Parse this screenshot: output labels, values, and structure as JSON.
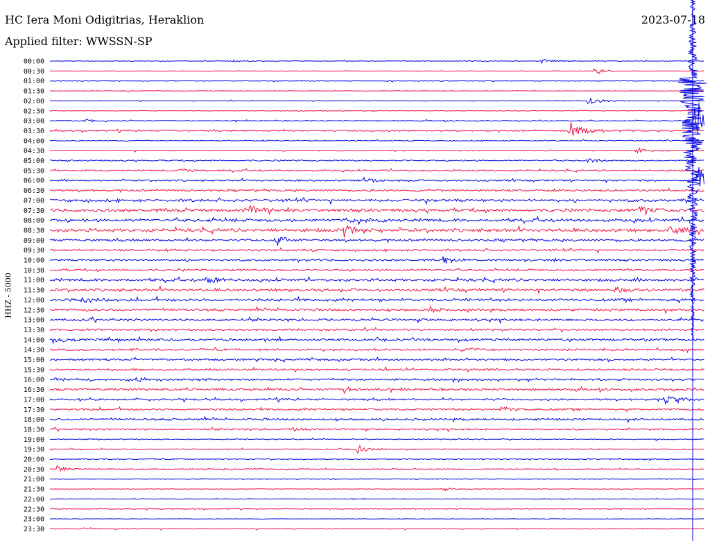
{
  "header": {
    "title": "HC Iera Moni Odigitrias, Heraklion",
    "filter": "Applied filter: WWSSN-SP",
    "date": "2023-07-18"
  },
  "chart_data": {
    "type": "line",
    "title": "HC Iera Moni Odigitrias, Heraklion",
    "subtitle": "Applied filter: WWSSN-SP",
    "ylabel": "HHZ - 5000",
    "colors": [
      "#0000dd",
      "#ee1144"
    ],
    "rows": [
      "00:00",
      "00:30",
      "01:00",
      "01:30",
      "02:00",
      "02:30",
      "03:00",
      "03:30",
      "04:00",
      "04:30",
      "05:00",
      "05:30",
      "06:00",
      "06:30",
      "07:00",
      "07:30",
      "08:00",
      "08:30",
      "09:00",
      "09:30",
      "10:00",
      "10:30",
      "11:00",
      "11:30",
      "12:00",
      "12:30",
      "13:00",
      "13:30",
      "14:00",
      "14:30",
      "15:00",
      "15:30",
      "16:00",
      "16:30",
      "17:00",
      "17:30",
      "18:00",
      "18:30",
      "19:00",
      "19:30",
      "20:00",
      "20:30",
      "21:00",
      "21:30",
      "22:00",
      "22:30",
      "23:00",
      "23:30"
    ],
    "noise": [
      0.4,
      0.3,
      0.4,
      0.3,
      0.4,
      0.4,
      0.6,
      0.9,
      0.6,
      0.6,
      0.8,
      1.0,
      1.0,
      1.2,
      1.6,
      1.8,
      1.8,
      2.0,
      1.4,
      1.2,
      1.2,
      1.2,
      1.6,
      1.6,
      1.6,
      1.4,
      1.4,
      1.2,
      1.4,
      1.2,
      1.2,
      1.2,
      1.2,
      1.4,
      1.2,
      1.2,
      1.2,
      1.0,
      0.6,
      0.6,
      0.6,
      0.6,
      0.4,
      0.4,
      0.4,
      0.5,
      0.3,
      0.5
    ],
    "events": [
      {
        "row": "00:00",
        "x": 0.28,
        "amp": 2
      },
      {
        "row": "00:00",
        "x": 0.752,
        "amp": 6
      },
      {
        "row": "00:30",
        "x": 0.832,
        "amp": 5
      },
      {
        "row": "02:00",
        "x": 0.823,
        "amp": 8
      },
      {
        "row": "03:00",
        "x": 0.055,
        "amp": 3
      },
      {
        "row": "03:30",
        "x": 0.795,
        "amp": 28
      },
      {
        "row": "04:30",
        "x": 0.897,
        "amp": 4
      },
      {
        "row": "05:00",
        "x": 0.82,
        "amp": 4
      },
      {
        "row": "05:30",
        "x": 0.2,
        "amp": 4
      },
      {
        "row": "06:00",
        "x": 0.48,
        "amp": 4
      },
      {
        "row": "07:30",
        "x": 0.3,
        "amp": 9
      },
      {
        "row": "07:30",
        "x": 0.9,
        "amp": 6
      },
      {
        "row": "08:00",
        "x": 0.46,
        "amp": 5
      },
      {
        "row": "08:30",
        "x": 0.45,
        "amp": 7
      },
      {
        "row": "08:30",
        "x": 0.948,
        "amp": 10
      },
      {
        "row": "09:00",
        "x": 0.345,
        "amp": 9
      },
      {
        "row": "10:00",
        "x": 0.6,
        "amp": 6
      },
      {
        "row": "11:00",
        "x": 0.24,
        "amp": 7
      },
      {
        "row": "11:30",
        "x": 0.86,
        "amp": 6
      },
      {
        "row": "12:00",
        "x": 0.05,
        "amp": 4
      },
      {
        "row": "12:30",
        "x": 0.58,
        "amp": 5
      },
      {
        "row": "14:00",
        "x": 0.01,
        "amp": 4
      },
      {
        "row": "14:30",
        "x": 0.63,
        "amp": 5
      },
      {
        "row": "16:00",
        "x": 0.12,
        "amp": 4
      },
      {
        "row": "16:30",
        "x": 0.45,
        "amp": 5
      },
      {
        "row": "17:00",
        "x": 0.94,
        "amp": 8
      },
      {
        "row": "17:30",
        "x": 0.69,
        "amp": 5
      },
      {
        "row": "18:30",
        "x": 0.37,
        "amp": 5
      },
      {
        "row": "19:30",
        "x": 0.47,
        "amp": 8
      },
      {
        "row": "20:30",
        "x": 0.01,
        "amp": 5
      },
      {
        "row": "21:30",
        "x": 0.6,
        "amp": 4
      },
      {
        "row": "23:30",
        "x": 0.05,
        "amp": 3
      }
    ],
    "big_events": [
      {
        "row": "03:00",
        "x": 0.985,
        "amp": 60
      },
      {
        "row": "06:00",
        "x": 0.99,
        "amp": 40
      }
    ],
    "marker_x": 0.982
  }
}
